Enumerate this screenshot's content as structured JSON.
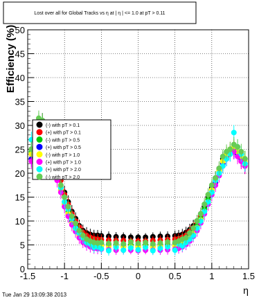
{
  "chart_data": {
    "type": "scatter",
    "title": "Lost over all for Global Tracks vs  η at | η | <= 1.0 at pT > 0.11",
    "xlabel": "η",
    "ylabel": "Efficiency (%)",
    "xlim": [
      -1.5,
      1.5
    ],
    "ylim": [
      0,
      50
    ],
    "x_ticks": [
      "-1.5",
      "-1",
      "-0.5",
      "0",
      "0.5",
      "1",
      "1.5"
    ],
    "y_ticks": [
      "0",
      "5",
      "10",
      "15",
      "20",
      "25",
      "30",
      "35",
      "40",
      "45",
      "50"
    ],
    "grid": true,
    "legend_position": "left-middle",
    "timestamp": "Tue Jan 29 13:09:38 2013",
    "series": [
      {
        "name": "(-) with pT > 0.1",
        "color": "#000000",
        "x": [
          -1.45,
          -1.4,
          -1.35,
          -1.3,
          -1.25,
          -1.2,
          -1.15,
          -1.1,
          -1.05,
          -1.0,
          -0.95,
          -0.9,
          -0.85,
          -0.8,
          -0.75,
          -0.7,
          -0.65,
          -0.6,
          -0.55,
          -0.5,
          -0.4,
          -0.3,
          -0.2,
          -0.1,
          0.0,
          0.1,
          0.2,
          0.3,
          0.4,
          0.5,
          0.55,
          0.6,
          0.65,
          0.7,
          0.75,
          0.8,
          0.85,
          0.9,
          0.95,
          1.0,
          1.05,
          1.1,
          1.15,
          1.2,
          1.25,
          1.3,
          1.35,
          1.4,
          1.45
        ],
        "y": [
          25,
          28,
          30,
          31,
          29,
          26,
          24,
          21,
          19,
          16,
          14,
          12,
          10.5,
          9,
          8,
          7.5,
          7.2,
          7,
          7,
          6.9,
          6.8,
          6.7,
          6.7,
          6.6,
          6.6,
          6.6,
          6.7,
          6.8,
          6.8,
          6.9,
          7,
          7.2,
          7.6,
          8.2,
          9,
          10,
          11.5,
          13,
          15,
          17,
          19,
          21,
          23,
          24,
          25,
          25.5,
          24.5,
          23,
          22
        ]
      },
      {
        "name": "(+) with pT > 0.1",
        "color": "#ff0000",
        "x": [
          -1.45,
          -1.4,
          -1.35,
          -1.3,
          -1.25,
          -1.2,
          -1.15,
          -1.1,
          -1.05,
          -1.0,
          -0.95,
          -0.9,
          -0.85,
          -0.8,
          -0.75,
          -0.7,
          -0.65,
          -0.6,
          -0.55,
          -0.5,
          -0.4,
          -0.3,
          -0.2,
          -0.1,
          0.0,
          0.1,
          0.2,
          0.3,
          0.4,
          0.5,
          0.55,
          0.6,
          0.65,
          0.7,
          0.75,
          0.8,
          0.85,
          0.9,
          0.95,
          1.0,
          1.05,
          1.1,
          1.15,
          1.2,
          1.25,
          1.3,
          1.35,
          1.4,
          1.45
        ],
        "y": [
          24,
          27,
          29.5,
          30,
          28,
          25.5,
          23,
          20.5,
          18.5,
          15.5,
          13.5,
          11.5,
          10,
          8.7,
          7.6,
          7,
          6.6,
          6.3,
          6.2,
          6.1,
          6,
          5.9,
          5.9,
          5.8,
          5.8,
          5.8,
          5.9,
          6,
          6.1,
          6.2,
          6.3,
          6.6,
          7,
          7.8,
          8.6,
          9.6,
          11,
          12.5,
          14.5,
          16.5,
          18.5,
          20.5,
          22.5,
          23.5,
          24.5,
          25,
          24,
          22.5,
          21.5
        ]
      },
      {
        "name": "(-) with pT > 0.5",
        "color": "#00cc00",
        "x": [
          -1.45,
          -1.4,
          -1.35,
          -1.3,
          -1.25,
          -1.2,
          -1.15,
          -1.1,
          -1.05,
          -1.0,
          -0.95,
          -0.9,
          -0.85,
          -0.8,
          -0.75,
          -0.7,
          -0.65,
          -0.6,
          -0.55,
          -0.5,
          -0.4,
          -0.3,
          -0.2,
          -0.1,
          0.0,
          0.1,
          0.2,
          0.3,
          0.4,
          0.5,
          0.55,
          0.6,
          0.65,
          0.7,
          0.75,
          0.8,
          0.85,
          0.9,
          0.95,
          1.0,
          1.05,
          1.1,
          1.15,
          1.2,
          1.25,
          1.3,
          1.35,
          1.4,
          1.45
        ],
        "y": [
          24.5,
          28,
          31,
          30.5,
          28.5,
          25,
          22.5,
          19.5,
          17,
          14,
          12,
          10,
          8.8,
          7.5,
          6.5,
          6,
          5.7,
          5.4,
          5.3,
          5.2,
          5.1,
          5,
          5,
          5,
          4.9,
          5,
          5,
          5.1,
          5.1,
          5.2,
          5.4,
          5.7,
          6.1,
          6.8,
          7.8,
          9,
          10.5,
          12.5,
          14.5,
          16.5,
          18.5,
          20.5,
          22.5,
          24,
          24.5,
          25,
          25.5,
          24,
          23
        ]
      },
      {
        "name": "(+) with pT > 0.5",
        "color": "#0000ff",
        "x": [
          -1.45,
          -1.4,
          -1.35,
          -1.3,
          -1.25,
          -1.2,
          -1.15,
          -1.1,
          -1.05,
          -1.0,
          -0.95,
          -0.9,
          -0.85,
          -0.8,
          -0.75,
          -0.7,
          -0.65,
          -0.6,
          -0.55,
          -0.5,
          -0.4,
          -0.3,
          -0.2,
          -0.1,
          0.0,
          0.1,
          0.2,
          0.3,
          0.4,
          0.5,
          0.55,
          0.6,
          0.65,
          0.7,
          0.75,
          0.8,
          0.85,
          0.9,
          0.95,
          1.0,
          1.05,
          1.1,
          1.15,
          1.2,
          1.25,
          1.3,
          1.35,
          1.4,
          1.45
        ],
        "y": [
          23,
          26.5,
          28.5,
          29,
          27,
          24.5,
          22,
          19,
          16.5,
          13.5,
          11.5,
          9.8,
          8.5,
          7.2,
          6.3,
          5.8,
          5.4,
          5.1,
          5,
          4.9,
          4.8,
          4.7,
          4.7,
          4.6,
          4.6,
          4.6,
          4.7,
          4.7,
          4.8,
          4.9,
          5.1,
          5.4,
          5.8,
          6.5,
          7.4,
          8.6,
          10,
          12,
          14,
          16,
          18,
          20,
          22,
          23,
          24,
          24.5,
          24,
          23,
          22
        ]
      },
      {
        "name": "(-) with pT > 1.0",
        "color": "#ffff00",
        "x": [
          -1.45,
          -1.4,
          -1.35,
          -1.3,
          -1.25,
          -1.2,
          -1.15,
          -1.1,
          -1.05,
          -1.0,
          -0.95,
          -0.9,
          -0.85,
          -0.8,
          -0.75,
          -0.7,
          -0.65,
          -0.6,
          -0.55,
          -0.5,
          -0.4,
          -0.3,
          -0.2,
          -0.1,
          0.0,
          0.1,
          0.2,
          0.3,
          0.4,
          0.5,
          0.55,
          0.6,
          0.65,
          0.7,
          0.75,
          0.8,
          0.85,
          0.9,
          0.95,
          1.0,
          1.05,
          1.1,
          1.15,
          1.2,
          1.25,
          1.3,
          1.35,
          1.4,
          1.45
        ],
        "y": [
          24,
          27.5,
          30,
          29.5,
          27.5,
          24.5,
          22,
          19,
          16.5,
          13.5,
          11.5,
          9.5,
          8.2,
          7,
          6,
          5.5,
          5.2,
          5,
          4.9,
          4.8,
          4.7,
          4.7,
          4.6,
          4.6,
          4.6,
          4.6,
          4.6,
          4.7,
          4.7,
          4.8,
          5,
          5.3,
          5.7,
          6.4,
          7.4,
          8.6,
          10.2,
          12,
          14,
          16.5,
          18.5,
          20.5,
          22.5,
          24,
          25,
          25.5,
          24.5,
          23.5,
          22.5
        ]
      },
      {
        "name": "(+) with pT > 1.0",
        "color": "#ff00ff",
        "x": [
          -1.45,
          -1.4,
          -1.35,
          -1.3,
          -1.25,
          -1.2,
          -1.15,
          -1.1,
          -1.05,
          -1.0,
          -0.95,
          -0.9,
          -0.85,
          -0.8,
          -0.75,
          -0.7,
          -0.65,
          -0.6,
          -0.55,
          -0.5,
          -0.4,
          -0.3,
          -0.2,
          -0.1,
          0.0,
          0.1,
          0.2,
          0.3,
          0.4,
          0.5,
          0.55,
          0.6,
          0.65,
          0.7,
          0.75,
          0.8,
          0.85,
          0.9,
          0.95,
          1.0,
          1.05,
          1.1,
          1.15,
          1.2,
          1.25,
          1.3,
          1.35,
          1.4,
          1.45
        ],
        "y": [
          22.5,
          26,
          28,
          28.5,
          26.5,
          24,
          21.5,
          18.5,
          16,
          13,
          11,
          9.2,
          7.8,
          6.5,
          5.6,
          5,
          4.6,
          4.3,
          4.2,
          4.1,
          4,
          3.9,
          3.9,
          3.9,
          3.8,
          3.9,
          3.9,
          3.9,
          4,
          4.1,
          4.3,
          4.6,
          5.1,
          5.8,
          6.8,
          8,
          9.6,
          11.5,
          13.5,
          15.5,
          17.5,
          19.5,
          21.5,
          23,
          24,
          24.5,
          23.5,
          22.5,
          21.5
        ]
      },
      {
        "name": "(+) with pT > 2.0",
        "color": "#00ffff",
        "x": [
          -1.45,
          -1.4,
          -1.35,
          -1.3,
          -1.25,
          -1.2,
          -1.15,
          -1.1,
          -1.05,
          -1.0,
          -0.95,
          -0.9,
          -0.85,
          -0.8,
          -0.75,
          -0.7,
          -0.65,
          -0.6,
          -0.55,
          -0.5,
          -0.4,
          -0.3,
          -0.2,
          -0.1,
          0.0,
          0.1,
          0.2,
          0.3,
          0.4,
          0.5,
          0.55,
          0.6,
          0.65,
          0.7,
          0.75,
          0.8,
          0.85,
          0.9,
          0.95,
          1.0,
          1.05,
          1.1,
          1.15,
          1.2,
          1.25,
          1.3,
          1.35,
          1.4,
          1.45
        ],
        "y": [
          27,
          28,
          26.5,
          30,
          28,
          25.5,
          22,
          20,
          17,
          14,
          12.5,
          10.5,
          8.5,
          7.5,
          6.5,
          5.5,
          5.2,
          4.5,
          4.6,
          4.2,
          3.8,
          4.5,
          3.9,
          4.4,
          4,
          4.5,
          3.8,
          4.3,
          4.6,
          3.9,
          5.2,
          4.8,
          5.5,
          6.2,
          7,
          8.5,
          10,
          12,
          14,
          16,
          18.5,
          20,
          21.5,
          23,
          24,
          28.5,
          25.5,
          24,
          22
        ]
      },
      {
        "name": "(-) with pT > 2.0",
        "color": "#66cc55",
        "x": [
          -1.45,
          -1.4,
          -1.35,
          -1.3,
          -1.25,
          -1.2,
          -1.15,
          -1.1,
          -1.05,
          -1.0,
          -0.95,
          -0.9,
          -0.85,
          -0.8,
          -0.75,
          -0.7,
          -0.65,
          -0.6,
          -0.55,
          -0.5,
          -0.4,
          -0.3,
          -0.2,
          -0.1,
          0.0,
          0.1,
          0.2,
          0.3,
          0.4,
          0.5,
          0.55,
          0.6,
          0.65,
          0.7,
          0.75,
          0.8,
          0.85,
          0.9,
          0.95,
          1.0,
          1.05,
          1.1,
          1.15,
          1.2,
          1.25,
          1.3,
          1.35,
          1.4,
          1.45
        ],
        "y": [
          25,
          29,
          31.5,
          31,
          29,
          26,
          23,
          20,
          17.5,
          15,
          13,
          11,
          9.5,
          8,
          7,
          6.2,
          5.8,
          5.5,
          5.4,
          5.5,
          5.3,
          5.4,
          5.2,
          5.6,
          5.3,
          5.5,
          5.2,
          5.4,
          5.6,
          5.5,
          5.8,
          6.2,
          6.5,
          7.5,
          8.5,
          10,
          11.5,
          13.5,
          15.5,
          17.5,
          19,
          21,
          23.5,
          24.5,
          25,
          26,
          25.5,
          24.5,
          23
        ]
      }
    ]
  }
}
